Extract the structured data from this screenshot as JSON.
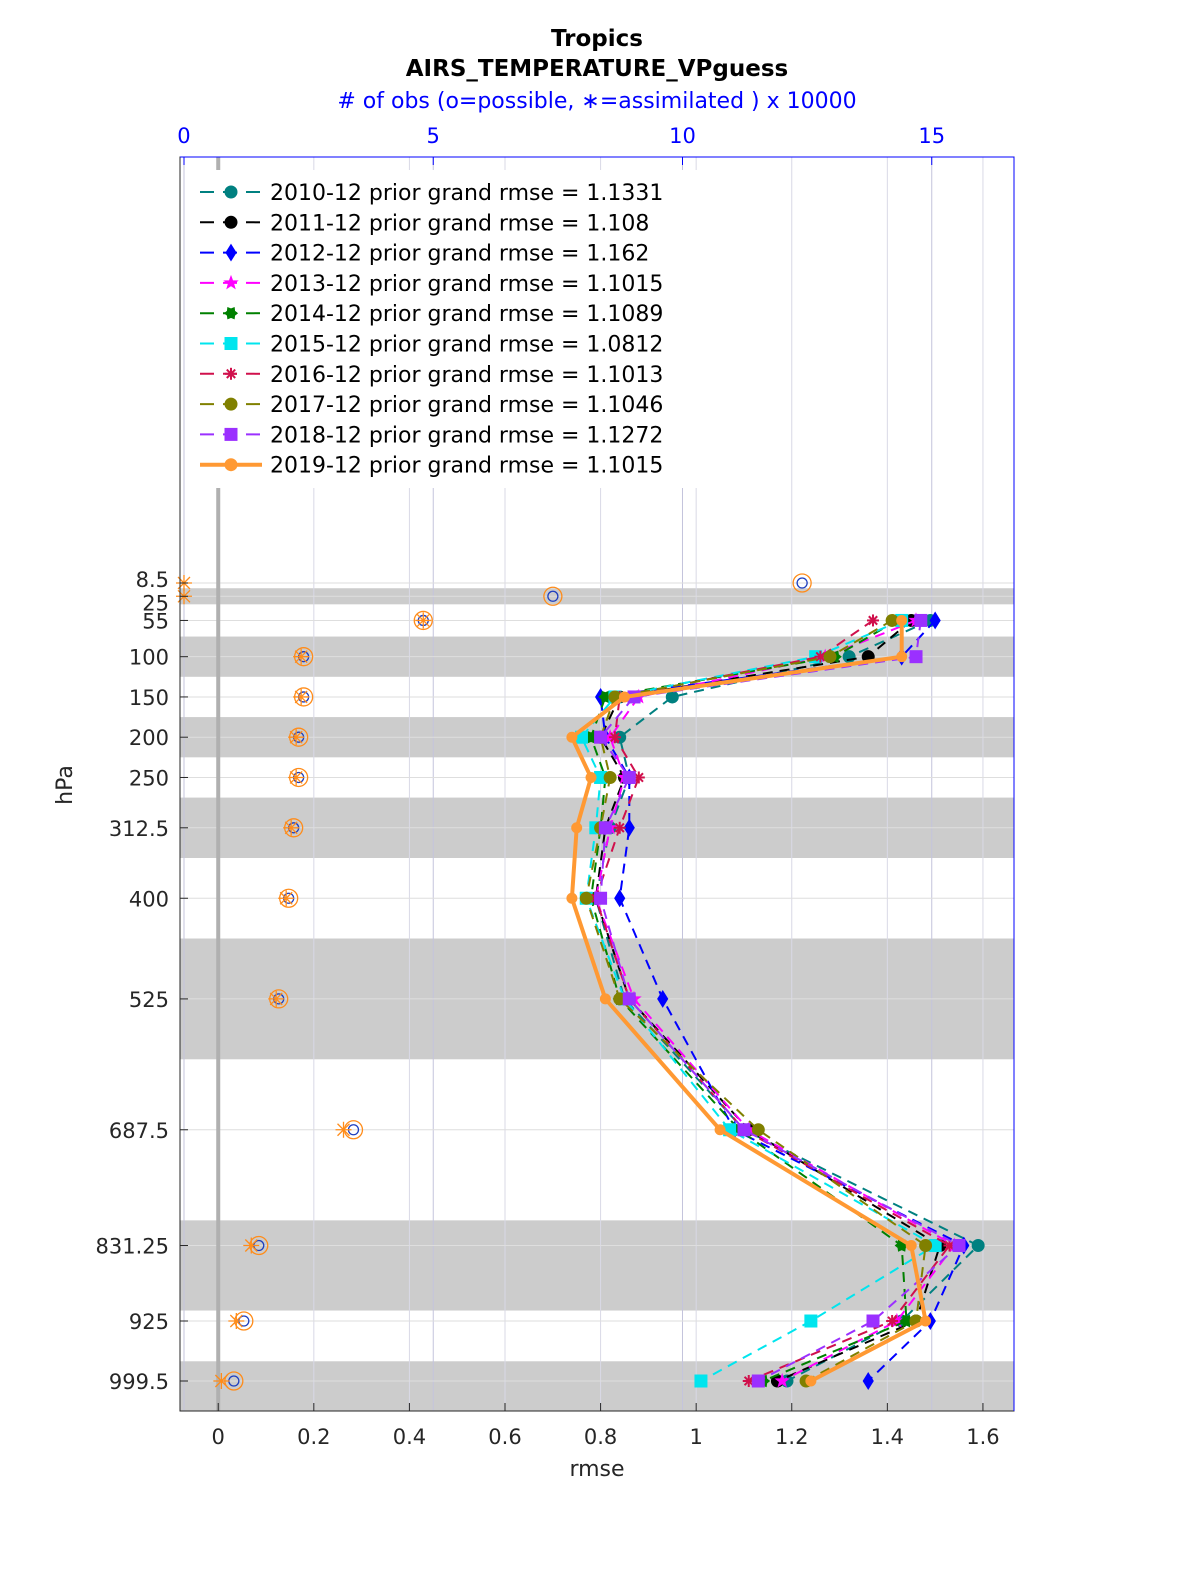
{
  "chart_data": {
    "type": "line",
    "title": "Tropics",
    "subtitle": "AIRS_TEMPERATURE_VPguess",
    "top_axis_label": "# of obs (o=possible, ∗=assimilated ) x 10000",
    "xlabel": "rmse",
    "ylabel": "hPa",
    "xlim": [
      -0.08,
      1.665
    ],
    "top_xlim": [
      -0.08,
      16.65
    ],
    "x_ticks": [
      "0",
      "0.2",
      "0.4",
      "0.6",
      "0.8",
      "1",
      "1.2",
      "1.4",
      "1.6"
    ],
    "top_x_ticks": [
      "0",
      "5",
      "10",
      "15"
    ],
    "y_scale": "linear, reversed",
    "y_ticks": [
      "8.5",
      "25",
      "55",
      "100",
      "150",
      "200",
      "250",
      "312.5",
      "400",
      "525",
      "687.5",
      "831.25",
      "925",
      "999.5"
    ],
    "levels": [
      8.5,
      25,
      55,
      100,
      150,
      200,
      250,
      312.5,
      400,
      525,
      687.5,
      831.25,
      925,
      999.5
    ],
    "shaded_layers": [
      [
        15,
        35
      ],
      [
        75,
        125
      ],
      [
        175,
        225
      ],
      [
        275,
        350
      ],
      [
        450,
        600
      ],
      [
        800,
        912
      ],
      [
        975,
        1050
      ]
    ],
    "grid": true,
    "legend_position": "top-left",
    "series": [
      {
        "name": "2010-12 prior grand rmse = 1.1331",
        "color": "#008080",
        "marker": "circle",
        "style": "dashed",
        "values": [
          null,
          null,
          1.49,
          1.32,
          0.95,
          0.84,
          0.86,
          0.82,
          0.79,
          0.85,
          1.1,
          1.59,
          1.43,
          1.19
        ]
      },
      {
        "name": "2011-12 prior grand rmse = 1.108",
        "color": "#000000",
        "marker": "circle",
        "style": "dashed",
        "values": [
          null,
          null,
          1.45,
          1.36,
          0.84,
          0.8,
          0.85,
          0.81,
          0.79,
          0.86,
          1.11,
          1.51,
          1.46,
          1.17
        ]
      },
      {
        "name": "2012-12 prior grand rmse = 1.162",
        "color": "#0000ff",
        "marker": "diamond",
        "style": "dashed",
        "values": [
          null,
          null,
          1.5,
          1.43,
          0.8,
          0.81,
          0.86,
          0.86,
          0.84,
          0.93,
          1.08,
          1.56,
          1.49,
          1.36
        ]
      },
      {
        "name": "2013-12 prior grand rmse = 1.1015",
        "color": "#ff00ff",
        "marker": "star",
        "style": "dashed",
        "values": [
          null,
          null,
          1.46,
          1.27,
          0.88,
          0.82,
          0.85,
          0.82,
          0.79,
          0.87,
          1.11,
          1.54,
          1.42,
          1.18
        ]
      },
      {
        "name": "2014-12 prior grand rmse = 1.1089",
        "color": "#008000",
        "marker": "hexagram",
        "style": "dashed",
        "values": [
          null,
          null,
          1.42,
          1.29,
          0.81,
          0.78,
          0.81,
          0.8,
          0.78,
          0.84,
          1.09,
          1.43,
          1.44,
          1.14
        ]
      },
      {
        "name": "2015-12 prior grand rmse = 1.0812",
        "color": "#00e5ee",
        "marker": "square",
        "style": "dashed",
        "values": [
          null,
          null,
          1.43,
          1.25,
          0.83,
          0.76,
          0.8,
          0.79,
          0.77,
          0.85,
          1.07,
          1.5,
          1.24,
          1.01
        ]
      },
      {
        "name": "2016-12 prior grand rmse = 1.1013",
        "color": "#d0104c",
        "marker": "asterisk",
        "style": "dashed",
        "values": [
          null,
          null,
          1.37,
          1.26,
          0.84,
          0.83,
          0.88,
          0.84,
          0.79,
          0.86,
          1.1,
          1.53,
          1.41,
          1.11
        ]
      },
      {
        "name": "2017-12 prior grand rmse = 1.1046",
        "color": "#808000",
        "marker": "circle",
        "style": "dashed",
        "values": [
          null,
          null,
          1.41,
          1.28,
          0.83,
          0.8,
          0.82,
          0.8,
          0.77,
          0.84,
          1.13,
          1.48,
          1.46,
          1.23
        ]
      },
      {
        "name": "2018-12 prior grand rmse = 1.1272",
        "color": "#9b30ff",
        "marker": "square",
        "style": "dashed",
        "values": [
          null,
          null,
          1.47,
          1.46,
          0.87,
          0.8,
          0.86,
          0.81,
          0.8,
          0.86,
          1.1,
          1.55,
          1.37,
          1.13
        ]
      },
      {
        "name": "2019-12 prior grand rmse = 1.1015",
        "color": "#ff9933",
        "marker": "circle",
        "style": "solid",
        "values": [
          null,
          null,
          1.43,
          1.43,
          0.85,
          0.74,
          0.78,
          0.75,
          0.74,
          0.81,
          1.05,
          1.45,
          1.48,
          1.24
        ]
      }
    ],
    "obs_count_x10000": {
      "possible": [
        12.4,
        7.4,
        4.8,
        2.4,
        2.4,
        2.3,
        2.3,
        2.2,
        2.1,
        1.9,
        3.4,
        1.5,
        1.2,
        1.0
      ],
      "assimilated": [
        0.0,
        0.0,
        4.8,
        2.35,
        2.35,
        2.25,
        2.25,
        2.15,
        2.05,
        1.85,
        3.2,
        1.35,
        1.05,
        0.75
      ]
    }
  }
}
